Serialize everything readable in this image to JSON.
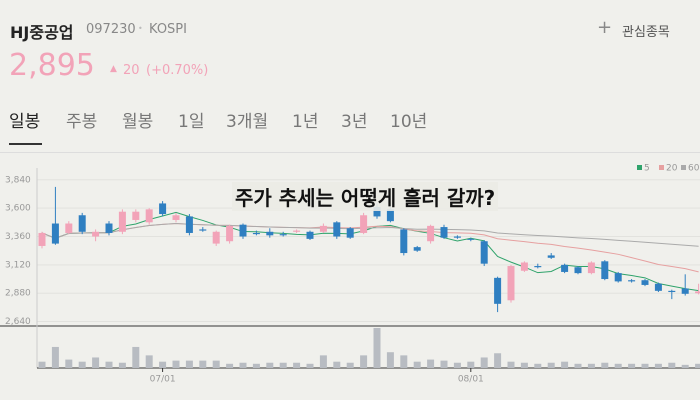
{
  "header": {
    "name": "HJ중공업",
    "code": "097230",
    "market": "KOSPI",
    "watch": "관심종목",
    "price": "2,895",
    "change": "20",
    "change_pct": "(+0.70%)"
  },
  "tabs": [
    "일봉",
    "주봉",
    "월봉",
    "1일",
    "3개월",
    "1년",
    "3년",
    "10년"
  ],
  "overlay": "주가 추세는 어떻게 흘러 갈까?",
  "chart_data": {
    "type": "candlestick",
    "up_color": "#f2a3b8",
    "down_color": "#2f7fc1",
    "legend": [
      {
        "name": "5",
        "color": "#2fa36b"
      },
      {
        "name": "20",
        "color": "#e6a0a0"
      },
      {
        "name": "60",
        "color": "#aaaaaa"
      }
    ],
    "categories": [
      null,
      null,
      null,
      null,
      null,
      null,
      null,
      null,
      null,
      "07/01",
      null,
      null,
      null,
      null,
      null,
      null,
      null,
      null,
      null,
      null,
      null,
      null,
      null,
      null,
      null,
      null,
      null,
      null,
      null,
      null,
      null,
      null,
      "08/01",
      null,
      null,
      null,
      null,
      null,
      null,
      null,
      null,
      null,
      null,
      null,
      null,
      null,
      null,
      null,
      null,
      null
    ],
    "open": [
      3280,
      3470,
      3390,
      3540,
      3360,
      3470,
      3400,
      3500,
      3480,
      3640,
      3500,
      3530,
      3420,
      3300,
      3320,
      3460,
      3390,
      3400,
      3380,
      3400,
      3400,
      3400,
      3480,
      3430,
      3390,
      3610,
      3590,
      3420,
      3270,
      3320,
      3440,
      3360,
      3340,
      3320,
      3010,
      2820,
      3070,
      3110,
      3200,
      3120,
      3100,
      3050,
      3150,
      3050,
      2990,
      2990,
      2960,
      2900,
      2920,
      2880
    ],
    "high": [
      3400,
      3780,
      3490,
      3560,
      3420,
      3490,
      3590,
      3590,
      3600,
      3660,
      3560,
      3550,
      3440,
      3410,
      3460,
      3470,
      3410,
      3430,
      3400,
      3420,
      3410,
      3470,
      3490,
      3440,
      3560,
      3640,
      3610,
      3430,
      3280,
      3460,
      3460,
      3370,
      3350,
      3330,
      3020,
      3120,
      3150,
      3130,
      3220,
      3130,
      3110,
      3150,
      3160,
      3060,
      3000,
      3000,
      2970,
      2910,
      3040,
      2960
    ],
    "low": [
      3260,
      3290,
      3380,
      3380,
      3320,
      3370,
      3380,
      3480,
      3460,
      3530,
      3480,
      3370,
      3400,
      3280,
      3300,
      3340,
      3370,
      3350,
      3360,
      3390,
      3330,
      3390,
      3340,
      3340,
      3380,
      3510,
      3480,
      3200,
      3230,
      3300,
      3340,
      3340,
      3320,
      3110,
      2720,
      2800,
      3060,
      3090,
      3170,
      3050,
      3040,
      3040,
      2990,
      2970,
      2970,
      2940,
      2890,
      2830,
      2860,
      2870
    ],
    "close": [
      3390,
      3300,
      3470,
      3400,
      3400,
      3390,
      3570,
      3570,
      3590,
      3550,
      3540,
      3390,
      3410,
      3400,
      3450,
      3360,
      3380,
      3370,
      3370,
      3410,
      3340,
      3450,
      3360,
      3350,
      3540,
      3530,
      3490,
      3220,
      3240,
      3450,
      3350,
      3350,
      3335,
      3130,
      2790,
      3110,
      3140,
      3100,
      3180,
      3060,
      3050,
      3140,
      3000,
      2980,
      2980,
      2950,
      2900,
      2890,
      2875,
      2895
    ],
    "volume": [
      6,
      20,
      8,
      6,
      10,
      6,
      5,
      20,
      12,
      6,
      7,
      7,
      7,
      7,
      4,
      5,
      4,
      5,
      5,
      5,
      4,
      12,
      6,
      5,
      12,
      38,
      15,
      12,
      6,
      8,
      7,
      5,
      6,
      10,
      14,
      6,
      5,
      4,
      5,
      6,
      4,
      4,
      5,
      4,
      4,
      4,
      4,
      5,
      3,
      4
    ],
    "ylim": [
      2560,
      3940
    ],
    "yticks": [
      {
        "value": 2640,
        "label": "2,640"
      },
      {
        "value": 2880,
        "label": "2,880"
      },
      {
        "value": 3120,
        "label": "3,120"
      },
      {
        "value": 3360,
        "label": "3,360"
      },
      {
        "value": 3600,
        "label": "3,600"
      },
      {
        "value": 3840,
        "label": "3,840"
      }
    ],
    "grid": true
  }
}
